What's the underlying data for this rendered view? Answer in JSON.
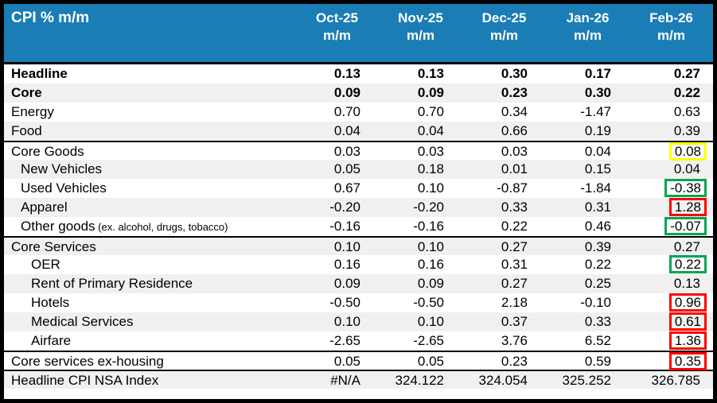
{
  "title": "CPI % m/m",
  "colors": {
    "header_bg": "#1b7db6",
    "stripe": "#f0f0f0",
    "border": "#000000",
    "highlight_yellow": "#ffff00",
    "highlight_green": "#00a651",
    "highlight_red": "#ff0000"
  },
  "chart_data": {
    "type": "table",
    "title": "CPI % m/m",
    "columns": [
      "Oct-25 m/m",
      "Nov-25 m/m",
      "Dec-25 m/m",
      "Jan-26 m/m",
      "Feb-26 m/m"
    ],
    "rows": [
      {
        "label": "Headline",
        "values": [
          "0.13",
          "0.13",
          "0.30",
          "0.17",
          "0.27"
        ],
        "bold": true,
        "indent": 0,
        "shade": false,
        "separator_above": false,
        "feb_highlight": null
      },
      {
        "label": "Core",
        "values": [
          "0.09",
          "0.09",
          "0.23",
          "0.30",
          "0.22"
        ],
        "bold": true,
        "indent": 0,
        "shade": true,
        "separator_above": false,
        "feb_highlight": null
      },
      {
        "label": "Energy",
        "values": [
          "0.70",
          "0.70",
          "0.34",
          "-1.47",
          "0.63"
        ],
        "bold": false,
        "indent": 0,
        "shade": false,
        "separator_above": false,
        "feb_highlight": null
      },
      {
        "label": "Food",
        "values": [
          "0.04",
          "0.04",
          "0.66",
          "0.19",
          "0.39"
        ],
        "bold": false,
        "indent": 0,
        "shade": true,
        "separator_above": false,
        "feb_highlight": null
      },
      {
        "label": "Core Goods",
        "values": [
          "0.03",
          "0.03",
          "0.03",
          "0.04",
          "0.08"
        ],
        "bold": false,
        "indent": 0,
        "shade": false,
        "separator_above": true,
        "feb_highlight": "yellow"
      },
      {
        "label": "New Vehicles",
        "values": [
          "0.05",
          "0.18",
          "0.01",
          "0.15",
          "0.04"
        ],
        "bold": false,
        "indent": 1,
        "shade": true,
        "separator_above": false,
        "feb_highlight": null
      },
      {
        "label": "Used Vehicles",
        "values": [
          "0.67",
          "0.10",
          "-0.87",
          "-1.84",
          "-0.38"
        ],
        "bold": false,
        "indent": 1,
        "shade": false,
        "separator_above": false,
        "feb_highlight": "green"
      },
      {
        "label": "Apparel",
        "values": [
          "-0.20",
          "-0.20",
          "0.33",
          "0.31",
          "1.28"
        ],
        "bold": false,
        "indent": 1,
        "shade": true,
        "separator_above": false,
        "feb_highlight": "red"
      },
      {
        "label": "Other goods",
        "label_note": " (ex. alcohol, drugs, tobacco)",
        "values": [
          "-0.16",
          "-0.16",
          "0.22",
          "0.46",
          "-0.07"
        ],
        "bold": false,
        "indent": 1,
        "shade": false,
        "separator_above": false,
        "feb_highlight": "green"
      },
      {
        "label": "Core Services",
        "values": [
          "0.10",
          "0.10",
          "0.27",
          "0.39",
          "0.27"
        ],
        "bold": false,
        "indent": 0,
        "shade": true,
        "separator_above": true,
        "feb_highlight": null
      },
      {
        "label": "OER",
        "values": [
          "0.16",
          "0.16",
          "0.31",
          "0.22",
          "0.22"
        ],
        "bold": false,
        "indent": 2,
        "shade": false,
        "separator_above": false,
        "feb_highlight": "green"
      },
      {
        "label": "Rent of Primary Residence",
        "values": [
          "0.09",
          "0.09",
          "0.27",
          "0.25",
          "0.13"
        ],
        "bold": false,
        "indent": 2,
        "shade": true,
        "separator_above": false,
        "feb_highlight": null
      },
      {
        "label": "Hotels",
        "values": [
          "-0.50",
          "-0.50",
          "2.18",
          "-0.10",
          "0.96"
        ],
        "bold": false,
        "indent": 2,
        "shade": false,
        "separator_above": false,
        "feb_highlight": "red"
      },
      {
        "label": "Medical Services",
        "values": [
          "0.10",
          "0.10",
          "0.37",
          "0.33",
          "0.61"
        ],
        "bold": false,
        "indent": 2,
        "shade": true,
        "separator_above": false,
        "feb_highlight": "red"
      },
      {
        "label": "Airfare",
        "values": [
          "-2.65",
          "-2.65",
          "3.76",
          "6.52",
          "1.36"
        ],
        "bold": false,
        "indent": 2,
        "shade": false,
        "separator_above": false,
        "feb_highlight": "red"
      },
      {
        "label": "Core services ex-housing",
        "values": [
          "0.05",
          "0.05",
          "0.23",
          "0.59",
          "0.35"
        ],
        "bold": false,
        "indent": 0,
        "shade": false,
        "separator_above": true,
        "feb_highlight": "red"
      },
      {
        "label": "Headline CPI NSA Index",
        "values": [
          "#N/A",
          "324.122",
          "324.054",
          "325.252",
          "326.785"
        ],
        "bold": false,
        "indent": 0,
        "shade": true,
        "separator_above": true,
        "feb_highlight": null
      }
    ]
  }
}
